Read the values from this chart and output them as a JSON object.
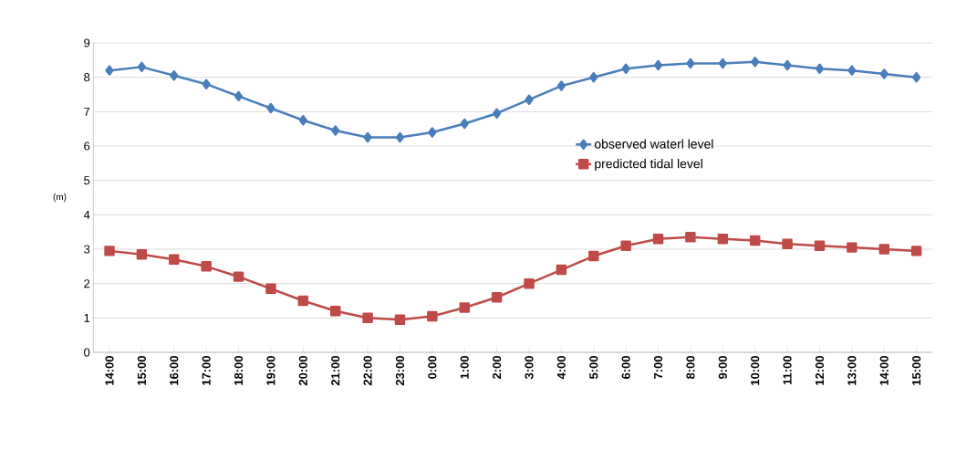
{
  "chart_data": {
    "type": "line",
    "ylabel": "(m)",
    "categories": [
      "14:00",
      "15:00",
      "16:00",
      "17:00",
      "18:00",
      "19:00",
      "20:00",
      "21:00",
      "22:00",
      "23:00",
      "0:00",
      "1:00",
      "2:00",
      "3:00",
      "4:00",
      "5:00",
      "6:00",
      "7:00",
      "8:00",
      "9:00",
      "10:00",
      "11:00",
      "12:00",
      "13:00",
      "14:00",
      "15:00"
    ],
    "series": [
      {
        "name": "observed waterl level",
        "color": "#4a7ebb",
        "marker": "diamond",
        "values": [
          8.2,
          8.3,
          8.05,
          7.8,
          7.45,
          7.1,
          6.75,
          6.45,
          6.25,
          6.25,
          6.4,
          6.65,
          6.95,
          7.35,
          7.75,
          8.0,
          8.25,
          8.35,
          8.4,
          8.4,
          8.45,
          8.35,
          8.25,
          8.2,
          8.1,
          8.0
        ]
      },
      {
        "name": "predicted tidal level",
        "color": "#be4b48",
        "marker": "square",
        "values": [
          2.95,
          2.85,
          2.7,
          2.5,
          2.2,
          1.85,
          1.5,
          1.2,
          1.0,
          0.95,
          1.05,
          1.3,
          1.6,
          2.0,
          2.4,
          2.8,
          3.1,
          3.3,
          3.35,
          3.3,
          3.25,
          3.15,
          3.1,
          3.05,
          3.0,
          2.95
        ]
      }
    ],
    "ylim": [
      0,
      9
    ],
    "yticks": [
      0,
      1,
      2,
      3,
      4,
      5,
      6,
      7,
      8,
      9
    ],
    "grid": "y",
    "legend": "right",
    "line_style": "solid"
  }
}
